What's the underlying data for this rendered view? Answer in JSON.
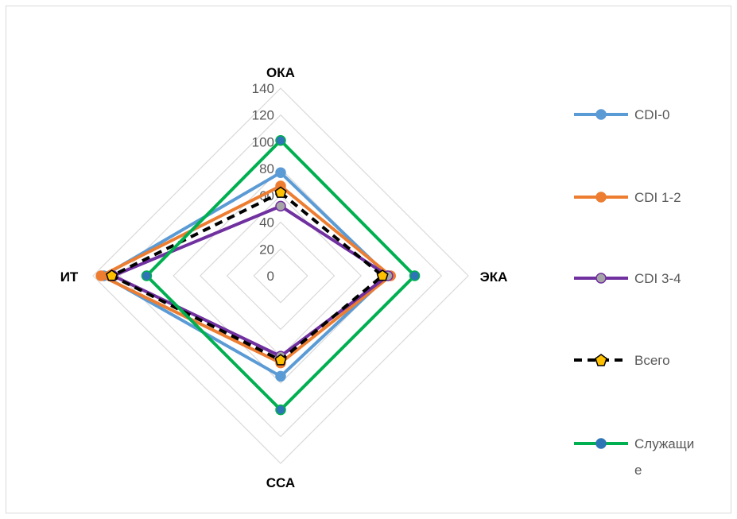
{
  "chart_data": {
    "type": "radar",
    "title": "",
    "axes": [
      "ОКА",
      "ЭКА",
      "ССА",
      "ИТ"
    ],
    "rlim": [
      0,
      140
    ],
    "ticks": [
      0,
      20,
      40,
      60,
      80,
      100,
      120,
      140
    ],
    "tick_labels": [
      "0",
      "20",
      "40",
      "60",
      "80",
      "100",
      "120",
      "140"
    ],
    "grid": true,
    "legend_position": "right",
    "series": [
      {
        "name": "CDI-0",
        "values": [
          77,
          80,
          75,
          132
        ],
        "color": "#5b9bd5",
        "marker_fill": "#5b9bd5",
        "dashed": false
      },
      {
        "name": "CDI 1-2",
        "values": [
          67,
          82,
          65,
          134
        ],
        "color": "#ed7d31",
        "marker_fill": "#ed7d31",
        "dashed": false
      },
      {
        "name": "CDI 3-4",
        "values": [
          52,
          80,
          60,
          125
        ],
        "color": "#7030a0",
        "marker_fill": "#a5a5a5",
        "dashed": false
      },
      {
        "name": "Всего",
        "values": [
          62,
          76,
          63,
          126
        ],
        "color": "#000000",
        "marker_fill": "#ffc000",
        "dashed": true
      },
      {
        "name": "Служащие",
        "values": [
          101,
          100,
          100,
          100
        ],
        "color": "#00b050",
        "marker_fill": "#2e75b6",
        "dashed": false
      }
    ]
  },
  "legend": {
    "items": [
      {
        "label": "CDI-0"
      },
      {
        "label": "CDI 1-2"
      },
      {
        "label": "CDI 3-4"
      },
      {
        "label": "Всего"
      },
      {
        "label_line1": "Служащи",
        "label_line2": "е"
      }
    ]
  }
}
